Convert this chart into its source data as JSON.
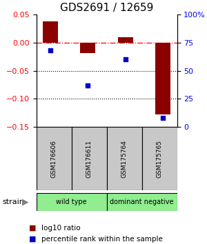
{
  "title": "GDS2691 / 12659",
  "samples": [
    "GSM176606",
    "GSM176611",
    "GSM175764",
    "GSM175765"
  ],
  "log10_ratio": [
    0.038,
    -0.018,
    0.01,
    -0.128
  ],
  "percentile_rank": [
    0.68,
    0.37,
    0.6,
    0.08
  ],
  "bar_color": "#8B0000",
  "dot_color": "#0000CD",
  "ylim_left": [
    -0.15,
    0.05
  ],
  "ylim_right": [
    0,
    1.0
  ],
  "yticks_left": [
    -0.15,
    -0.1,
    -0.05,
    0.0,
    0.05
  ],
  "yticks_right": [
    0,
    0.25,
    0.5,
    0.75,
    1.0
  ],
  "ytick_labels_right": [
    "0",
    "25",
    "50",
    "75",
    "100%"
  ],
  "hlines_dotted": [
    -0.05,
    -0.1
  ],
  "group_labels": [
    "wild type",
    "dominant negative"
  ],
  "group_colors": [
    "#90EE90",
    "#90EE90"
  ],
  "sample_box_color": "#C8C8C8",
  "strain_label": "strain",
  "legend_bar_label": "log10 ratio",
  "legend_dot_label": "percentile rank within the sample",
  "title_fontsize": 11,
  "axis_tick_fontsize": 8,
  "sample_label_fontsize": 6.5,
  "group_label_fontsize": 7,
  "legend_fontsize": 7.5
}
